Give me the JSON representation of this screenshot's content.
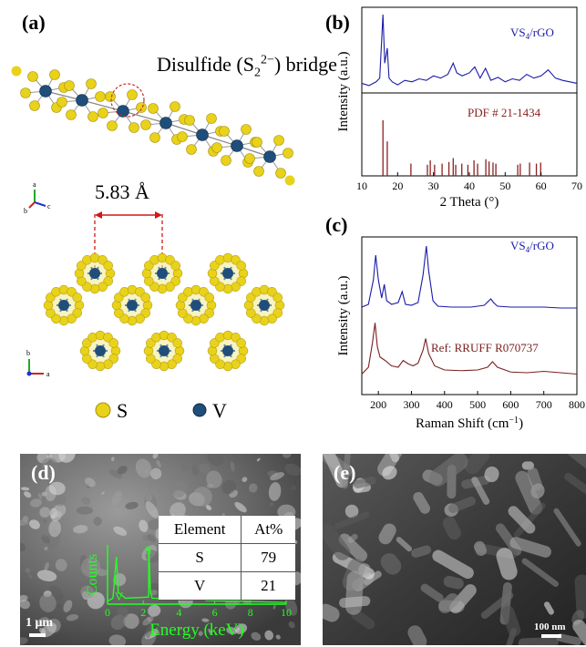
{
  "panels": {
    "a": {
      "label": "(a)",
      "bridge_text": "Disulfide (S",
      "bridge_sub": "2",
      "bridge_sup": "2−",
      "bridge_end": ") bridge",
      "distance": "5.83 Å",
      "axes_top": {
        "a": "a",
        "b": "b",
        "c": "c"
      },
      "axes_bottom": {
        "b": "b",
        "a": "a"
      },
      "legend": [
        {
          "symbol": "S",
          "color": "#e8d21a"
        },
        {
          "symbol": "V",
          "color": "#1f4e7a"
        }
      ]
    },
    "b": {
      "label": "(b)"
    },
    "c": {
      "label": "(c)"
    },
    "d": {
      "label": "(d)",
      "scale": "1 μm",
      "table": {
        "headers": [
          "Element",
          "At%"
        ],
        "rows": [
          [
            "S",
            "79"
          ],
          [
            "V",
            "21"
          ]
        ]
      },
      "edx": {
        "ylabel": "Counts",
        "xlabel": "Energy (keV)",
        "xticks": [
          "0",
          "2",
          "4",
          "6",
          "8",
          "10"
        ],
        "peak_labels": [
          "V",
          "S",
          "V"
        ],
        "color": "#22ff22"
      }
    },
    "e": {
      "label": "(e)",
      "scale": "100 nm"
    }
  },
  "chart_data": [
    {
      "type": "line",
      "panel": "b",
      "xlabel": "2 Theta (°)",
      "ylabel": "Intensity (a.u.)",
      "xlim": [
        10,
        70
      ],
      "xticks": [
        10,
        20,
        30,
        40,
        50,
        60,
        70
      ],
      "series": [
        {
          "name": "VS4/rGO",
          "color": "#1a1aa8",
          "x": [
            10,
            12,
            14,
            15,
            15.9,
            16.4,
            17.1,
            17.6,
            18.5,
            20,
            22,
            24,
            26,
            28,
            30,
            32,
            34,
            35.5,
            36.5,
            38,
            40,
            41.5,
            43,
            44.5,
            46,
            48,
            50,
            52,
            54,
            56,
            58,
            60,
            62,
            64,
            66,
            68,
            70
          ],
          "y": [
            0.08,
            0.05,
            0.1,
            0.15,
            1.0,
            0.35,
            0.55,
            0.15,
            0.1,
            0.06,
            0.12,
            0.1,
            0.14,
            0.12,
            0.18,
            0.15,
            0.2,
            0.35,
            0.22,
            0.18,
            0.22,
            0.3,
            0.15,
            0.28,
            0.12,
            0.16,
            0.1,
            0.14,
            0.12,
            0.2,
            0.15,
            0.18,
            0.26,
            0.15,
            0.12,
            0.1,
            0.08
          ]
        },
        {
          "name": "PDF # 21-1434",
          "type": "stick",
          "color": "#8b2020",
          "x": [
            15.9,
            17.1,
            23.7,
            28.3,
            29.1,
            30.3,
            32.4,
            34.3,
            35.5,
            36.2,
            37.9,
            39.6,
            41.3,
            42.3,
            44.6,
            45.5,
            46.6,
            47.4,
            53.5,
            54.2,
            56.8,
            58.7,
            59.9
          ],
          "y": [
            1.0,
            0.62,
            0.22,
            0.2,
            0.28,
            0.2,
            0.22,
            0.25,
            0.32,
            0.2,
            0.22,
            0.2,
            0.28,
            0.22,
            0.3,
            0.26,
            0.24,
            0.22,
            0.2,
            0.22,
            0.24,
            0.22,
            0.24
          ]
        }
      ]
    },
    {
      "type": "line",
      "panel": "c",
      "xlabel": "Raman Shift (cm⁻¹)",
      "ylabel": "Intensity (a.u.)",
      "xlim": [
        150,
        800
      ],
      "xticks": [
        200,
        300,
        400,
        500,
        600,
        700,
        800
      ],
      "series": [
        {
          "name": "VS4/rGO",
          "color": "#1a1aa8",
          "x": [
            150,
            170,
            185,
            192,
            200,
            210,
            218,
            225,
            240,
            260,
            272,
            282,
            300,
            320,
            335,
            345,
            352,
            365,
            380,
            420,
            480,
            520,
            540,
            548,
            560,
            600,
            650,
            700,
            750,
            800
          ],
          "y": [
            0.05,
            0.08,
            0.35,
            0.62,
            0.35,
            0.15,
            0.3,
            0.12,
            0.08,
            0.1,
            0.22,
            0.08,
            0.07,
            0.1,
            0.4,
            0.72,
            0.45,
            0.12,
            0.06,
            0.05,
            0.05,
            0.07,
            0.14,
            0.1,
            0.06,
            0.05,
            0.05,
            0.05,
            0.04,
            0.04
          ]
        },
        {
          "name": "Ref: RRUFF R070737",
          "color": "#7a2020",
          "x": [
            150,
            170,
            182,
            190,
            197,
            205,
            220,
            240,
            260,
            275,
            290,
            305,
            320,
            335,
            343,
            352,
            370,
            400,
            450,
            500,
            530,
            545,
            560,
            600,
            650,
            700,
            750,
            800
          ],
          "y": [
            0.1,
            0.2,
            0.55,
            0.85,
            0.5,
            0.35,
            0.3,
            0.22,
            0.2,
            0.3,
            0.25,
            0.22,
            0.26,
            0.45,
            0.62,
            0.4,
            0.22,
            0.16,
            0.15,
            0.16,
            0.2,
            0.28,
            0.2,
            0.13,
            0.12,
            0.14,
            0.12,
            0.1
          ]
        }
      ]
    }
  ]
}
